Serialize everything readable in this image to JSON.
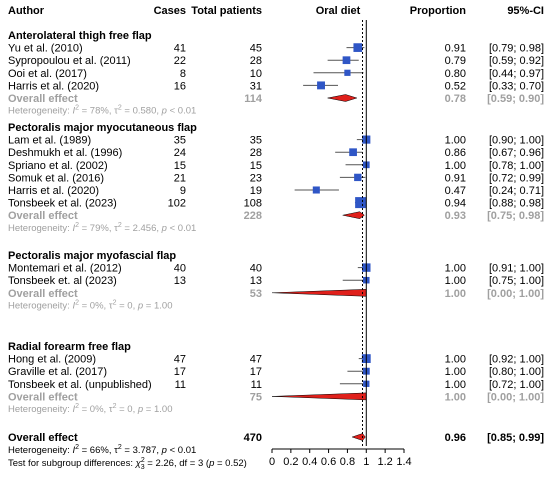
{
  "chart_data": {
    "type": "forest",
    "headers": {
      "author": "Author",
      "cases": "Cases",
      "total": "Total patients",
      "plot": "Oral diet",
      "proportion": "Proportion",
      "ci": "95%-CI"
    },
    "xaxis": {
      "range": [
        0,
        1.4
      ],
      "ticks": [
        "0",
        "0.2",
        "0.4",
        "0.6",
        "0.8",
        "1",
        "1.2",
        "1.4"
      ],
      "overall_line": 0.96
    },
    "groups": [
      {
        "title": "Anterolateral thigh free flap",
        "studies": [
          {
            "author": "Yu et al. (2010)",
            "cases": "41",
            "total": "45",
            "prop": "0.91",
            "ci": "[0.79; 0.98]",
            "est": 0.91,
            "lo": 0.79,
            "hi": 0.98
          },
          {
            "author": "Sypropoulou et al. (2011)",
            "cases": "22",
            "total": "28",
            "prop": "0.79",
            "ci": "[0.59; 0.92]",
            "est": 0.79,
            "lo": 0.59,
            "hi": 0.92
          },
          {
            "author": "Ooi et al. (2017)",
            "cases": "8",
            "total": "10",
            "prop": "0.80",
            "ci": "[0.44; 0.97]",
            "est": 0.8,
            "lo": 0.44,
            "hi": 0.97
          },
          {
            "author": "Harris et al. (2020)",
            "cases": "16",
            "total": "31",
            "prop": "0.52",
            "ci": "[0.33; 0.70]",
            "est": 0.52,
            "lo": 0.33,
            "hi": 0.7
          }
        ],
        "overall": {
          "label": "Overall effect",
          "total": "114",
          "prop": "0.78",
          "ci": "[0.59; 0.90]",
          "est": 0.78,
          "lo": 0.59,
          "hi": 0.9
        },
        "het": {
          "prefix": "Heterogeneity: ",
          "i2": "78%",
          "tau2": "0.580",
          "p": "< 0.01"
        }
      },
      {
        "title": "Pectoralis major myocutaneous flap",
        "studies": [
          {
            "author": "Lam et al. (1989)",
            "cases": "35",
            "total": "35",
            "prop": "1.00",
            "ci": "[0.90; 1.00]",
            "est": 1.0,
            "lo": 0.9,
            "hi": 1.0
          },
          {
            "author": "Deshmukh et al. (1996)",
            "cases": "24",
            "total": "28",
            "prop": "0.86",
            "ci": "[0.67; 0.96]",
            "est": 0.86,
            "lo": 0.67,
            "hi": 0.96
          },
          {
            "author": "Spriano et al. (2002)",
            "cases": "15",
            "total": "15",
            "prop": "1.00",
            "ci": "[0.78; 1.00]",
            "est": 1.0,
            "lo": 0.78,
            "hi": 1.0
          },
          {
            "author": "Somuk et al. (2016)",
            "cases": "21",
            "total": "23",
            "prop": "0.91",
            "ci": "[0.72; 0.99]",
            "est": 0.91,
            "lo": 0.72,
            "hi": 0.99
          },
          {
            "author": "Harris et al. (2020)",
            "cases": "9",
            "total": "19",
            "prop": "0.47",
            "ci": "[0.24; 0.71]",
            "est": 0.47,
            "lo": 0.24,
            "hi": 0.71
          },
          {
            "author": "Tonsbeek et al. (2023)",
            "cases": "102",
            "total": "108",
            "prop": "0.94",
            "ci": "[0.88; 0.98]",
            "est": 0.94,
            "lo": 0.88,
            "hi": 0.98
          }
        ],
        "overall": {
          "label": "Overall effect",
          "total": "228",
          "prop": "0.93",
          "ci": "[0.75; 0.98]",
          "est": 0.93,
          "lo": 0.75,
          "hi": 0.98
        },
        "het": {
          "prefix": "Heterogeneity: ",
          "i2": "79%",
          "tau2": "2.456",
          "p": "< 0.01"
        }
      },
      {
        "title": "Pectoralis major myofascial flap",
        "studies": [
          {
            "author": "Montemari et al. (2012)",
            "cases": "40",
            "total": "40",
            "prop": "1.00",
            "ci": "[0.91; 1.00]",
            "est": 1.0,
            "lo": 0.91,
            "hi": 1.0
          },
          {
            "author": "Tonsbeek et. al (2023)",
            "cases": "13",
            "total": "13",
            "prop": "1.00",
            "ci": "[0.75; 1.00]",
            "est": 1.0,
            "lo": 0.75,
            "hi": 1.0
          }
        ],
        "overall": {
          "label": "Overall effect",
          "total": "53",
          "prop": "1.00",
          "ci": "[0.00; 1.00]",
          "est": 1.0,
          "lo": 0.0,
          "hi": 1.0
        },
        "het": {
          "prefix": "Heterogeneity: ",
          "i2": "0%",
          "tau2": "0",
          "p": "= 1.00"
        }
      },
      {
        "title": "Radial forearm free flap",
        "studies": [
          {
            "author": "Hong et al. (2009)",
            "cases": "47",
            "total": "47",
            "prop": "1.00",
            "ci": "[0.92; 1.00]",
            "est": 1.0,
            "lo": 0.92,
            "hi": 1.0
          },
          {
            "author": "Graville et al. (2017)",
            "cases": "17",
            "total": "17",
            "prop": "1.00",
            "ci": "[0.80; 1.00]",
            "est": 1.0,
            "lo": 0.8,
            "hi": 1.0
          },
          {
            "author": "Tonsbeek et al. (unpublished)",
            "cases": "11",
            "total": "11",
            "prop": "1.00",
            "ci": "[0.72; 1.00]",
            "est": 1.0,
            "lo": 0.72,
            "hi": 1.0
          }
        ],
        "overall": {
          "label": "Overall effect",
          "total": "75",
          "prop": "1.00",
          "ci": "[0.00; 1.00]",
          "est": 1.0,
          "lo": 0.0,
          "hi": 1.0
        },
        "het": {
          "prefix": "Heterogeneity: ",
          "i2": "0%",
          "tau2": "0",
          "p": "= 1.00"
        }
      }
    ],
    "overall": {
      "label": "Overall effect",
      "total": "470",
      "prop": "0.96",
      "ci": "[0.85; 0.99]",
      "est": 0.96,
      "lo": 0.85,
      "hi": 0.99,
      "het": {
        "prefix": "Heterogeneity: ",
        "i2": "66%",
        "tau2": "3.787",
        "p": "< 0.01"
      },
      "subgroup_test": {
        "prefix": "Test for subgroup differences: ",
        "chi2": "2.26",
        "df": "3",
        "p": "0.52"
      }
    },
    "colors": {
      "square": "#2f56c6",
      "diamond": "#e0201b",
      "pooled_text": "#a0a0a0",
      "line": "#000000",
      "ci_line": "#555555"
    }
  }
}
